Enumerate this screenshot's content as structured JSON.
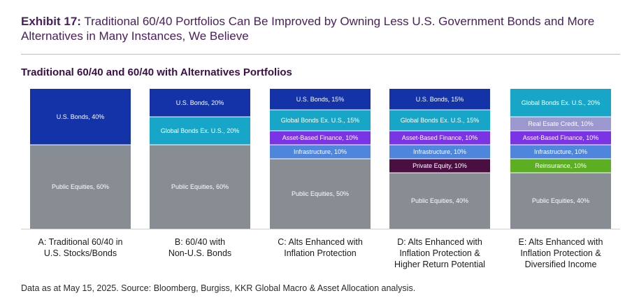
{
  "header": {
    "exhibit_label": "Exhibit 17:",
    "exhibit_title": "Traditional 60/40 Portfolios Can Be Improved by Owning Less U.S. Government Bonds and More Alternatives in Many Instances, We Believe"
  },
  "chart_data": {
    "type": "bar",
    "stacked": true,
    "normalized": true,
    "title": "Traditional 60/40 and 60/40 with Alternatives Portfolios",
    "ylim": [
      0,
      100
    ],
    "categories": [
      "A: Traditional 60/40 in U.S. Stocks/Bonds",
      "B: 60/40 with Non-U.S. Bonds",
      "C: Alts Enhanced with Inflation Protection",
      "D: Alts Enhanced with Inflation Protection & Higher Return Potential",
      "E: Alts Enhanced with Inflation Protection & Diversified Income"
    ],
    "category_lines": [
      [
        "A: Traditional 60/40 in",
        "U.S. Stocks/Bonds"
      ],
      [
        "B: 60/40 with",
        "Non-U.S. Bonds"
      ],
      [
        "C: Alts Enhanced with",
        "Inflation Protection"
      ],
      [
        "D: Alts Enhanced with",
        "Inflation Protection &",
        "Higher Return Potential"
      ],
      [
        "E: Alts Enhanced with",
        "Inflation Protection &",
        "Diversified Income"
      ]
    ],
    "portfolios": [
      {
        "segments": [
          {
            "label": "U.S. Bonds, 40%",
            "asset": "U.S. Bonds",
            "value": 40,
            "color": "#1433a8"
          },
          {
            "label": "Public Equities, 60%",
            "asset": "Public Equities",
            "value": 60,
            "color": "#878d92"
          }
        ]
      },
      {
        "segments": [
          {
            "label": "U.S. Bonds, 20%",
            "asset": "U.S. Bonds",
            "value": 20,
            "color": "#1433a8"
          },
          {
            "label": "Global Bonds Ex. U.S., 20%",
            "asset": "Global Bonds Ex. U.S.",
            "value": 20,
            "color": "#17a6c8"
          },
          {
            "label": "Public Equities, 60%",
            "asset": "Public Equities",
            "value": 60,
            "color": "#878d92"
          }
        ]
      },
      {
        "segments": [
          {
            "label": "U.S. Bonds, 15%",
            "asset": "U.S. Bonds",
            "value": 15,
            "color": "#1433a8"
          },
          {
            "label": "Global Bonds Ex. U.S., 15%",
            "asset": "Global Bonds Ex. U.S.",
            "value": 15,
            "color": "#17a6c8"
          },
          {
            "label": "Asset-Based Finance, 10%",
            "asset": "Asset-Based Finance",
            "value": 10,
            "color": "#7b33e6"
          },
          {
            "label": "Infrastructure, 10%",
            "asset": "Infrastructure",
            "value": 10,
            "color": "#4f86dd"
          },
          {
            "label": "Public Equities, 50%",
            "asset": "Public Equities",
            "value": 50,
            "color": "#878d92"
          }
        ]
      },
      {
        "segments": [
          {
            "label": "U.S. Bonds, 15%",
            "asset": "U.S. Bonds",
            "value": 15,
            "color": "#1433a8"
          },
          {
            "label": "Global Bonds Ex. U.S., 15%",
            "asset": "Global Bonds Ex. U.S.",
            "value": 15,
            "color": "#17a6c8"
          },
          {
            "label": "Asset-Based Finance, 10%",
            "asset": "Asset-Based Finance",
            "value": 10,
            "color": "#7b33e6"
          },
          {
            "label": "Infrastructure, 10%",
            "asset": "Infrastructure",
            "value": 10,
            "color": "#4f86dd"
          },
          {
            "label": "Private Equity, 10%",
            "asset": "Private Equity",
            "value": 10,
            "color": "#4a0e40"
          },
          {
            "label": "Public Equities, 40%",
            "asset": "Public Equities",
            "value": 40,
            "color": "#878d92"
          }
        ]
      },
      {
        "segments": [
          {
            "label": "Global Bonds Ex. U.S., 20%",
            "asset": "Global Bonds Ex. U.S.",
            "value": 20,
            "color": "#17a6c8"
          },
          {
            "label": "Real Esate Credit, 10%",
            "asset": "Real Estate Credit",
            "value": 10,
            "color": "#9b97cf"
          },
          {
            "label": "Asset-Based Finance, 10%",
            "asset": "Asset-Based Finance",
            "value": 10,
            "color": "#7b33e6"
          },
          {
            "label": "Infrastructure, 10%",
            "asset": "Infrastructure",
            "value": 10,
            "color": "#4f86dd"
          },
          {
            "label": "Reinsurance, 10%",
            "asset": "Reinsurance",
            "value": 10,
            "color": "#5cae23"
          },
          {
            "label": "Public Equities, 40%",
            "asset": "Public Equities",
            "value": 40,
            "color": "#878d92"
          }
        ]
      }
    ]
  },
  "source": "Data as at May 15, 2025. Source: Bloomberg, Burgiss, KKR Global Macro & Asset Allocation analysis."
}
